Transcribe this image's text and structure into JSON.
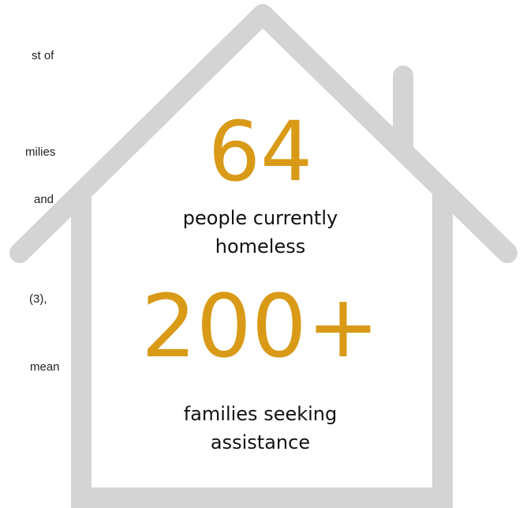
{
  "left_text_fragments": [
    "st of",
    "milies",
    "and",
    "(3),",
    "mean"
  ],
  "stat_primary": {
    "value": "64",
    "caption_line1": "people currently",
    "caption_line2": "homeless"
  },
  "stat_secondary": {
    "value": "200+",
    "caption_line1": "families seeking",
    "caption_line2": "assistance"
  },
  "colors": {
    "accent": "#d99a17",
    "house_outline": "#d4d4d4",
    "text": "#111111"
  },
  "icons": [
    "house-outline-icon"
  ]
}
